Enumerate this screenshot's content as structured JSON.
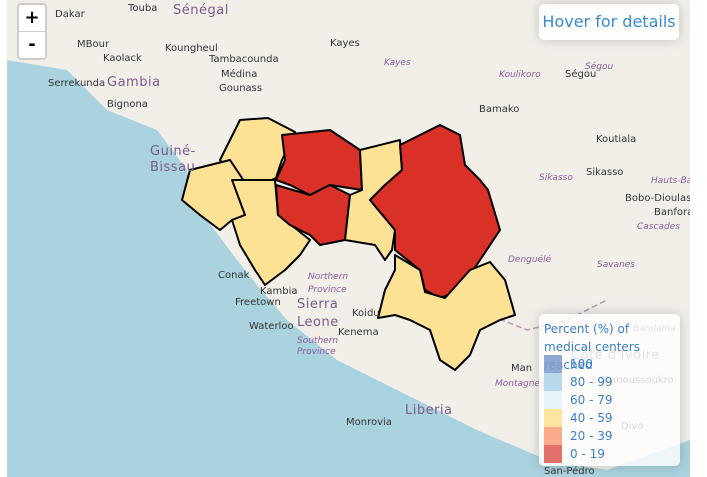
{
  "controls": {
    "zoom_in": "+",
    "zoom_out": "-"
  },
  "info": "Hover for details",
  "legend": {
    "title": "Percent (%) of medical centers reached",
    "items": [
      {
        "label": "100",
        "color": "#7f9fce"
      },
      {
        "label": "80 - 99",
        "color": "#b2d4e9"
      },
      {
        "label": "60 - 79",
        "color": "#e4f3f8"
      },
      {
        "label": "40 - 59",
        "color": "#fde295"
      },
      {
        "label": "20 - 39",
        "color": "#f9a17c"
      },
      {
        "label": "0 - 19",
        "color": "#e0625a"
      }
    ]
  },
  "places": [
    "Dakar",
    "Touba",
    "Sénégal",
    "Kayes",
    "MBour",
    "Koungheul",
    "Kaolack",
    "Tambacounda",
    "Kayes",
    "Koulikoro",
    "Ségou",
    "Ségou",
    "Serrekunda",
    "Gambia",
    "Médina",
    "Gounass",
    "Bignona",
    "Bamako",
    "Koutiala",
    "Guiné-",
    "Bissau",
    "Sikasso",
    "Sikasso",
    "Hauts-Bas",
    "Bobo-Dioulasso",
    "Banfora",
    "Cascades",
    "Denguélé",
    "Savanes",
    "Conak",
    "Kambia",
    "Northern",
    "Province",
    "Freetown",
    "Sierra",
    "Leone",
    "Koidu",
    "Kenema",
    "Waterloo",
    "Southern",
    "Province",
    "Man",
    "Montagnes",
    "Côte d'Ivoire",
    "Yamoussoukro",
    "Liberia",
    "Monrovia",
    "San-Pédro",
    "Bandama",
    "Divo"
  ]
}
